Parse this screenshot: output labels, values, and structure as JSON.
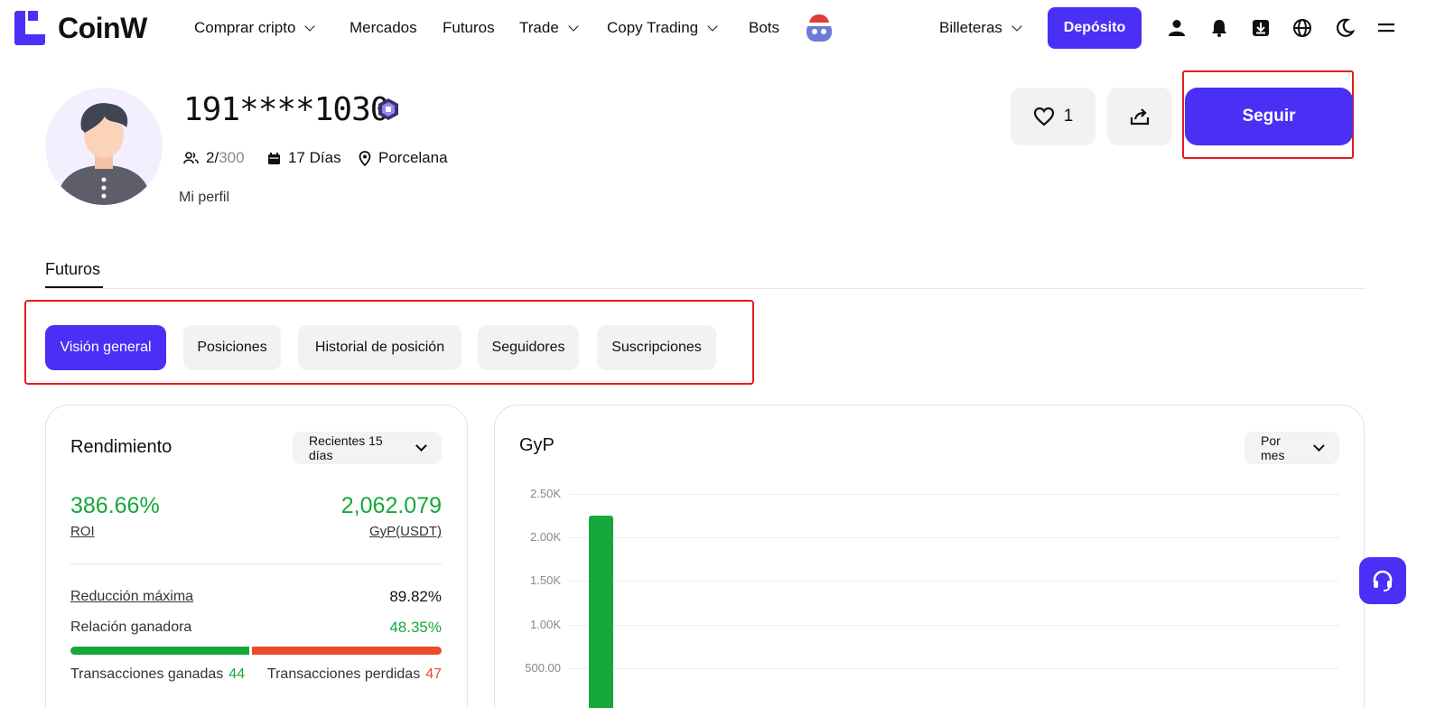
{
  "brand": {
    "name": "CoinW",
    "accent": "#4a2ff5",
    "positive": "#16a83a",
    "negative": "#ee4a2c"
  },
  "nav": {
    "items": [
      {
        "label": "Comprar cripto",
        "has_dropdown": true
      },
      {
        "label": "Mercados",
        "has_dropdown": false
      },
      {
        "label": "Futuros",
        "has_dropdown": false
      },
      {
        "label": "Trade",
        "has_dropdown": true
      },
      {
        "label": "Copy Trading",
        "has_dropdown": true
      },
      {
        "label": "Bots",
        "has_dropdown": false
      }
    ],
    "wallets_label": "Billeteras",
    "deposit_label": "Depósito",
    "icons": [
      "user-icon",
      "bell-icon",
      "download-icon",
      "globe-icon",
      "moon-icon",
      "menu-icon"
    ]
  },
  "profile": {
    "username": "191****1030",
    "followers_current": "2",
    "followers_max": "300",
    "days": "17 Días",
    "location": "Porcelana",
    "bio": "Mi perfil",
    "likes": "1",
    "follow_label": "Seguir"
  },
  "tabs": {
    "main": "Futuros",
    "sub": [
      {
        "label": "Visión general",
        "active": true
      },
      {
        "label": "Posiciones",
        "active": false
      },
      {
        "label": "Historial de posición",
        "active": false
      },
      {
        "label": "Seguidores",
        "active": false
      },
      {
        "label": "Suscripciones",
        "active": false
      }
    ]
  },
  "performance": {
    "title": "Rendimiento",
    "period": "Recientes 15 días",
    "roi_value": "386.66%",
    "roi_label": "ROI",
    "pnl_value": "2,062.079",
    "pnl_label": "GyP(USDT)",
    "max_drawdown_label": "Reducción máxima",
    "max_drawdown_value": "89.82%",
    "win_ratio_label": "Relación ganadora",
    "win_ratio_value": "48.35%",
    "win_ratio_fraction": 0.4835,
    "wins_label": "Transacciones ganadas",
    "wins_value": "44",
    "losses_label": "Transacciones perdidas",
    "losses_value": "47"
  },
  "pnl_chart": {
    "title": "GyP",
    "period": "Por mes"
  },
  "chart_data": {
    "type": "bar",
    "title": "GyP",
    "yticks": [
      "2.50K",
      "2.00K",
      "1.50K",
      "1.00K",
      "500.00"
    ],
    "ylim": [
      0,
      2500
    ],
    "series": [
      {
        "values": [
          2250
        ]
      }
    ]
  }
}
